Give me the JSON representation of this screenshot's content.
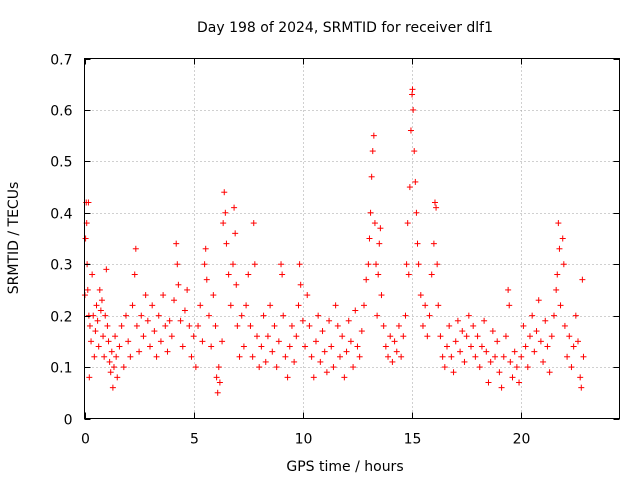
{
  "chart_data": {
    "type": "scatter",
    "title": "Day 198 of 2024, SRMTID for receiver dlf1",
    "xlabel": "GPS time / hours",
    "ylabel": "SRMTID / TECUs",
    "xlim": [
      0,
      24.5
    ],
    "ylim": [
      0,
      0.7
    ],
    "xticks": [
      0,
      5,
      10,
      15,
      20
    ],
    "xtick_labels": [
      "0",
      "5",
      "10",
      "15",
      "20"
    ],
    "yticks": [
      0,
      0.1,
      0.2,
      0.3,
      0.4,
      0.5,
      0.6,
      0.7
    ],
    "ytick_labels": [
      "0",
      "0.1",
      "0.2",
      "0.3",
      "0.4",
      "0.5",
      "0.6",
      "0.7"
    ],
    "grid": true,
    "marker": "+",
    "color": "#ff0000",
    "series": [
      {
        "name": "SRMTID",
        "points": [
          [
            0.02,
            0.24
          ],
          [
            0.05,
            0.35
          ],
          [
            0.08,
            0.42
          ],
          [
            0.1,
            0.38
          ],
          [
            0.12,
            0.3
          ],
          [
            0.15,
            0.25
          ],
          [
            0.18,
            0.42
          ],
          [
            0.2,
            0.2
          ],
          [
            0.22,
            0.08
          ],
          [
            0.25,
            0.18
          ],
          [
            0.3,
            0.15
          ],
          [
            0.35,
            0.28
          ],
          [
            0.4,
            0.2
          ],
          [
            0.45,
            0.12
          ],
          [
            0.5,
            0.17
          ],
          [
            0.55,
            0.22
          ],
          [
            0.6,
            0.19
          ],
          [
            0.65,
            0.14
          ],
          [
            0.7,
            0.25
          ],
          [
            0.75,
            0.21
          ],
          [
            0.8,
            0.23
          ],
          [
            0.85,
            0.16
          ],
          [
            0.9,
            0.12
          ],
          [
            0.95,
            0.2
          ],
          [
            1.0,
            0.29
          ],
          [
            1.05,
            0.18
          ],
          [
            1.1,
            0.15
          ],
          [
            1.15,
            0.11
          ],
          [
            1.2,
            0.09
          ],
          [
            1.25,
            0.13
          ],
          [
            1.3,
            0.06
          ],
          [
            1.35,
            0.1
          ],
          [
            1.4,
            0.16
          ],
          [
            1.45,
            0.12
          ],
          [
            1.5,
            0.08
          ],
          [
            1.6,
            0.14
          ],
          [
            1.7,
            0.18
          ],
          [
            1.8,
            0.1
          ],
          [
            1.9,
            0.2
          ],
          [
            2.0,
            0.15
          ],
          [
            2.1,
            0.12
          ],
          [
            2.2,
            0.22
          ],
          [
            2.3,
            0.28
          ],
          [
            2.35,
            0.33
          ],
          [
            2.4,
            0.18
          ],
          [
            2.5,
            0.13
          ],
          [
            2.6,
            0.2
          ],
          [
            2.7,
            0.16
          ],
          [
            2.8,
            0.24
          ],
          [
            2.9,
            0.19
          ],
          [
            3.0,
            0.14
          ],
          [
            3.1,
            0.22
          ],
          [
            3.2,
            0.17
          ],
          [
            3.3,
            0.12
          ],
          [
            3.4,
            0.2
          ],
          [
            3.5,
            0.15
          ],
          [
            3.6,
            0.24
          ],
          [
            3.7,
            0.18
          ],
          [
            3.8,
            0.13
          ],
          [
            3.9,
            0.19
          ],
          [
            4.0,
            0.16
          ],
          [
            4.1,
            0.23
          ],
          [
            4.2,
            0.34
          ],
          [
            4.25,
            0.3
          ],
          [
            4.3,
            0.26
          ],
          [
            4.4,
            0.19
          ],
          [
            4.5,
            0.14
          ],
          [
            4.6,
            0.21
          ],
          [
            4.7,
            0.25
          ],
          [
            4.8,
            0.18
          ],
          [
            4.9,
            0.12
          ],
          [
            5.0,
            0.16
          ],
          [
            5.1,
            0.1
          ],
          [
            5.2,
            0.18
          ],
          [
            5.3,
            0.22
          ],
          [
            5.4,
            0.15
          ],
          [
            5.5,
            0.3
          ],
          [
            5.55,
            0.33
          ],
          [
            5.6,
            0.27
          ],
          [
            5.7,
            0.2
          ],
          [
            5.8,
            0.14
          ],
          [
            5.9,
            0.24
          ],
          [
            6.0,
            0.18
          ],
          [
            6.05,
            0.08
          ],
          [
            6.1,
            0.05
          ],
          [
            6.15,
            0.1
          ],
          [
            6.2,
            0.07
          ],
          [
            6.3,
            0.15
          ],
          [
            6.35,
            0.38
          ],
          [
            6.4,
            0.44
          ],
          [
            6.45,
            0.4
          ],
          [
            6.5,
            0.34
          ],
          [
            6.6,
            0.28
          ],
          [
            6.7,
            0.22
          ],
          [
            6.8,
            0.3
          ],
          [
            6.85,
            0.41
          ],
          [
            6.9,
            0.36
          ],
          [
            6.95,
            0.26
          ],
          [
            7.0,
            0.18
          ],
          [
            7.1,
            0.12
          ],
          [
            7.2,
            0.2
          ],
          [
            7.3,
            0.14
          ],
          [
            7.4,
            0.22
          ],
          [
            7.5,
            0.28
          ],
          [
            7.6,
            0.18
          ],
          [
            7.7,
            0.12
          ],
          [
            7.75,
            0.38
          ],
          [
            7.8,
            0.3
          ],
          [
            7.9,
            0.16
          ],
          [
            8.0,
            0.1
          ],
          [
            8.1,
            0.14
          ],
          [
            8.2,
            0.2
          ],
          [
            8.3,
            0.11
          ],
          [
            8.4,
            0.16
          ],
          [
            8.5,
            0.22
          ],
          [
            8.6,
            0.13
          ],
          [
            8.7,
            0.18
          ],
          [
            8.8,
            0.1
          ],
          [
            8.9,
            0.15
          ],
          [
            9.0,
            0.3
          ],
          [
            9.05,
            0.28
          ],
          [
            9.1,
            0.2
          ],
          [
            9.2,
            0.12
          ],
          [
            9.3,
            0.08
          ],
          [
            9.4,
            0.14
          ],
          [
            9.5,
            0.18
          ],
          [
            9.6,
            0.11
          ],
          [
            9.7,
            0.16
          ],
          [
            9.8,
            0.22
          ],
          [
            9.85,
            0.3
          ],
          [
            9.9,
            0.26
          ],
          [
            10.0,
            0.19
          ],
          [
            10.1,
            0.14
          ],
          [
            10.2,
            0.24
          ],
          [
            10.3,
            0.18
          ],
          [
            10.4,
            0.12
          ],
          [
            10.5,
            0.08
          ],
          [
            10.6,
            0.15
          ],
          [
            10.7,
            0.2
          ],
          [
            10.8,
            0.11
          ],
          [
            10.9,
            0.17
          ],
          [
            11.0,
            0.13
          ],
          [
            11.1,
            0.09
          ],
          [
            11.2,
            0.19
          ],
          [
            11.3,
            0.14
          ],
          [
            11.4,
            0.1
          ],
          [
            11.5,
            0.22
          ],
          [
            11.6,
            0.18
          ],
          [
            11.7,
            0.12
          ],
          [
            11.8,
            0.16
          ],
          [
            11.9,
            0.08
          ],
          [
            12.0,
            0.13
          ],
          [
            12.1,
            0.19
          ],
          [
            12.2,
            0.15
          ],
          [
            12.3,
            0.1
          ],
          [
            12.4,
            0.21
          ],
          [
            12.5,
            0.14
          ],
          [
            12.6,
            0.12
          ],
          [
            12.7,
            0.17
          ],
          [
            12.8,
            0.22
          ],
          [
            12.9,
            0.27
          ],
          [
            13.0,
            0.3
          ],
          [
            13.05,
            0.35
          ],
          [
            13.1,
            0.4
          ],
          [
            13.15,
            0.47
          ],
          [
            13.2,
            0.52
          ],
          [
            13.25,
            0.55
          ],
          [
            13.3,
            0.38
          ],
          [
            13.35,
            0.3
          ],
          [
            13.4,
            0.2
          ],
          [
            13.45,
            0.28
          ],
          [
            13.5,
            0.34
          ],
          [
            13.55,
            0.37
          ],
          [
            13.6,
            0.24
          ],
          [
            13.7,
            0.18
          ],
          [
            13.8,
            0.14
          ],
          [
            13.9,
            0.12
          ],
          [
            14.0,
            0.16
          ],
          [
            14.1,
            0.11
          ],
          [
            14.2,
            0.15
          ],
          [
            14.3,
            0.13
          ],
          [
            14.4,
            0.18
          ],
          [
            14.5,
            0.12
          ],
          [
            14.6,
            0.16
          ],
          [
            14.7,
            0.2
          ],
          [
            14.75,
            0.3
          ],
          [
            14.8,
            0.38
          ],
          [
            14.85,
            0.28
          ],
          [
            14.9,
            0.45
          ],
          [
            14.95,
            0.56
          ],
          [
            15.0,
            0.63
          ],
          [
            15.02,
            0.64
          ],
          [
            15.05,
            0.6
          ],
          [
            15.1,
            0.52
          ],
          [
            15.15,
            0.46
          ],
          [
            15.2,
            0.4
          ],
          [
            15.25,
            0.34
          ],
          [
            15.3,
            0.3
          ],
          [
            15.4,
            0.24
          ],
          [
            15.5,
            0.18
          ],
          [
            15.6,
            0.22
          ],
          [
            15.7,
            0.16
          ],
          [
            15.8,
            0.2
          ],
          [
            15.9,
            0.28
          ],
          [
            16.0,
            0.34
          ],
          [
            16.05,
            0.42
          ],
          [
            16.1,
            0.41
          ],
          [
            16.15,
            0.3
          ],
          [
            16.2,
            0.22
          ],
          [
            16.3,
            0.16
          ],
          [
            16.4,
            0.12
          ],
          [
            16.5,
            0.1
          ],
          [
            16.6,
            0.14
          ],
          [
            16.7,
            0.18
          ],
          [
            16.8,
            0.12
          ],
          [
            16.9,
            0.09
          ],
          [
            17.0,
            0.15
          ],
          [
            17.1,
            0.19
          ],
          [
            17.2,
            0.13
          ],
          [
            17.3,
            0.17
          ],
          [
            17.4,
            0.11
          ],
          [
            17.5,
            0.16
          ],
          [
            17.6,
            0.2
          ],
          [
            17.7,
            0.14
          ],
          [
            17.8,
            0.18
          ],
          [
            17.9,
            0.12
          ],
          [
            18.0,
            0.16
          ],
          [
            18.1,
            0.1
          ],
          [
            18.2,
            0.14
          ],
          [
            18.3,
            0.19
          ],
          [
            18.4,
            0.13
          ],
          [
            18.5,
            0.07
          ],
          [
            18.6,
            0.11
          ],
          [
            18.7,
            0.17
          ],
          [
            18.8,
            0.12
          ],
          [
            18.9,
            0.15
          ],
          [
            19.0,
            0.09
          ],
          [
            19.1,
            0.06
          ],
          [
            19.2,
            0.12
          ],
          [
            19.3,
            0.16
          ],
          [
            19.4,
            0.25
          ],
          [
            19.45,
            0.22
          ],
          [
            19.5,
            0.11
          ],
          [
            19.6,
            0.08
          ],
          [
            19.7,
            0.13
          ],
          [
            19.8,
            0.1
          ],
          [
            19.9,
            0.07
          ],
          [
            20.0,
            0.12
          ],
          [
            20.1,
            0.18
          ],
          [
            20.2,
            0.14
          ],
          [
            20.3,
            0.1
          ],
          [
            20.4,
            0.16
          ],
          [
            20.5,
            0.2
          ],
          [
            20.6,
            0.13
          ],
          [
            20.7,
            0.17
          ],
          [
            20.8,
            0.23
          ],
          [
            20.9,
            0.15
          ],
          [
            21.0,
            0.11
          ],
          [
            21.1,
            0.19
          ],
          [
            21.2,
            0.14
          ],
          [
            21.3,
            0.09
          ],
          [
            21.4,
            0.16
          ],
          [
            21.5,
            0.2
          ],
          [
            21.6,
            0.25
          ],
          [
            21.65,
            0.28
          ],
          [
            21.7,
            0.38
          ],
          [
            21.75,
            0.33
          ],
          [
            21.8,
            0.22
          ],
          [
            21.9,
            0.35
          ],
          [
            21.95,
            0.3
          ],
          [
            22.0,
            0.18
          ],
          [
            22.1,
            0.12
          ],
          [
            22.2,
            0.16
          ],
          [
            22.3,
            0.1
          ],
          [
            22.4,
            0.14
          ],
          [
            22.5,
            0.2
          ],
          [
            22.6,
            0.15
          ],
          [
            22.7,
            0.08
          ],
          [
            22.75,
            0.06
          ],
          [
            22.8,
            0.27
          ],
          [
            22.85,
            0.12
          ]
        ]
      }
    ]
  }
}
